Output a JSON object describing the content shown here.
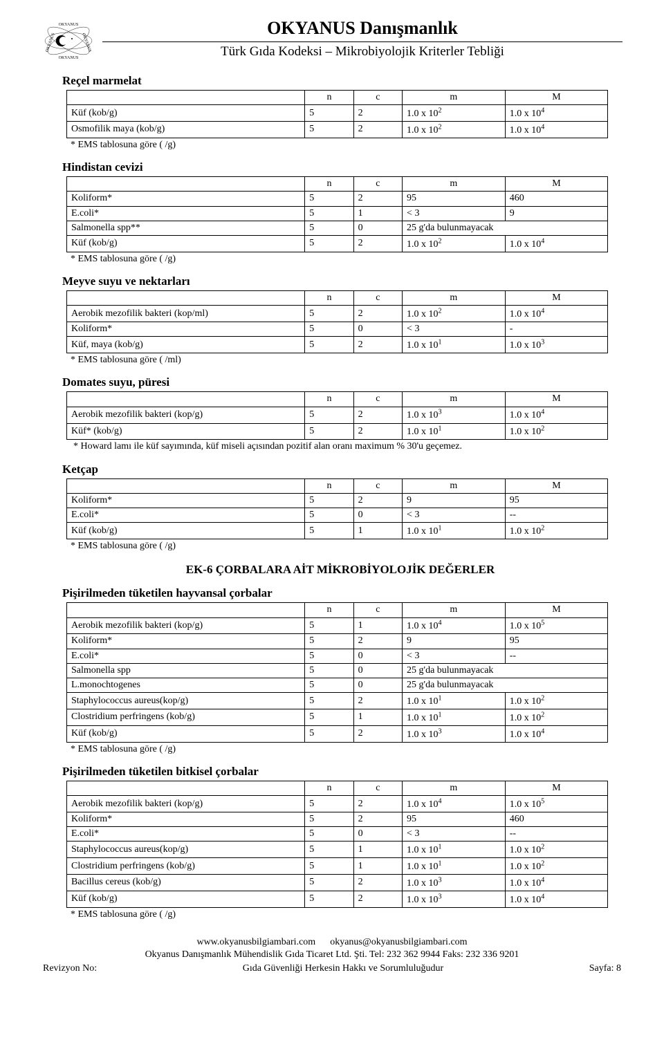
{
  "header": {
    "main_title": "OKYANUS Danışmanlık",
    "subtitle": "Türk Gıda Kodeksi – Mikrobiyolojik Kriterler Tebliği"
  },
  "sections": [
    {
      "title": "Reçel marmelat",
      "headers": [
        "",
        "n",
        "c",
        "m",
        "M"
      ],
      "rows": [
        [
          "Küf (kob/g)",
          "5",
          "2",
          "1.0 x 10^2",
          "1.0 x 10^4"
        ],
        [
          "Osmofilik maya (kob/g)",
          "5",
          "2",
          "1.0 x 10^2",
          "1.0 x 10^4"
        ]
      ],
      "notes": [
        "* EMS tablosuna göre ( /g)"
      ]
    },
    {
      "title": "Hindistan cevizi",
      "headers": [
        "",
        "n",
        "c",
        "m",
        "M"
      ],
      "rows": [
        [
          "Koliform*",
          "5",
          "2",
          "95",
          "460"
        ],
        [
          "E.coli*",
          "5",
          "1",
          "< 3",
          "9"
        ],
        [
          "Salmonella spp**",
          "5",
          "0",
          "25 g'da bulunmayacak",
          ""
        ],
        [
          "Küf (kob/g)",
          "5",
          "2",
          "1.0 x 10^2",
          "1.0 x 10^4"
        ]
      ],
      "notes": [
        "* EMS tablosuna göre ( /g)"
      ]
    },
    {
      "title": "Meyve suyu ve nektarları",
      "headers": [
        "",
        "n",
        "c",
        "m",
        "M"
      ],
      "rows": [
        [
          "Aerobik mezofilik bakteri (kop/ml)",
          "5",
          "2",
          "1.0 x 10^2",
          "1.0 x 10^4"
        ],
        [
          "Koliform*",
          "5",
          "0",
          "< 3",
          "-"
        ],
        [
          "Küf, maya (kob/g)",
          "5",
          "2",
          "1.0 x 10^1",
          "1.0 x 10^3"
        ]
      ],
      "notes": [
        "* EMS tablosuna göre ( /ml)"
      ]
    },
    {
      "title": "Domates suyu, püresi",
      "headers": [
        "",
        "n",
        "c",
        "m",
        "M"
      ],
      "rows": [
        [
          "Aerobik mezofilik bakteri (kop/g)",
          "5",
          "2",
          "1.0 x 10^3",
          "1.0 x 10^4"
        ],
        [
          "Küf* (kob/g)",
          "5",
          "2",
          "1.0 x 10^1",
          "1.0 x 10^2"
        ]
      ],
      "notes": [
        "* Howard lamı ile küf sayımında, küf miseli açısından pozitif alan oranı maximum % 30'u geçemez."
      ]
    },
    {
      "title": "Ketçap",
      "headers": [
        "",
        "n",
        "c",
        "m",
        "M"
      ],
      "rows": [
        [
          "Koliform*",
          "5",
          "2",
          "9",
          "95"
        ],
        [
          "E.coli*",
          "5",
          "0",
          "< 3",
          "--"
        ],
        [
          "Küf (kob/g)",
          "5",
          "1",
          "1.0 x 10^1",
          "1.0 x 10^2"
        ]
      ],
      "notes": [
        "* EMS tablosuna göre ( /g)"
      ]
    }
  ],
  "ek6": {
    "ek_title": "EK-6 ÇORBALARA AİT MİKROBİYOLOJİK DEĞERLER",
    "sub1": {
      "title": "Pişirilmeden tüketilen hayvansal çorbalar",
      "headers": [
        "",
        "n",
        "c",
        "m",
        "M"
      ],
      "rows": [
        [
          "Aerobik mezofilik bakteri (kop/g)",
          "5",
          "1",
          "1.0 x 10^4",
          "1.0 x 10^5"
        ],
        [
          "Koliform*",
          "5",
          "2",
          "9",
          "95"
        ],
        [
          "E.coli*",
          "5",
          "0",
          "< 3",
          "--"
        ],
        [
          "Salmonella spp",
          "5",
          "0",
          "25 g'da bulunmayacak",
          ""
        ],
        [
          "L.monochtogenes",
          "5",
          "0",
          "25 g'da bulunmayacak",
          ""
        ],
        [
          "Staphylococcus aureus(kop/g)",
          "5",
          "2",
          "1.0 x 10^1",
          "1.0 x 10^2"
        ],
        [
          "Clostridium perfringens (kob/g)",
          "5",
          "1",
          "1.0 x 10^1",
          "1.0 x 10^2"
        ],
        [
          "Küf (kob/g)",
          "5",
          "2",
          "1.0 x 10^3",
          "1.0 x 10^4"
        ]
      ],
      "notes": [
        "* EMS tablosuna göre ( /g)"
      ]
    },
    "sub2": {
      "title": "Pişirilmeden tüketilen bitkisel çorbalar",
      "headers": [
        "",
        "n",
        "c",
        "m",
        "M"
      ],
      "rows": [
        [
          "Aerobik mezofilik bakteri (kop/g)",
          "5",
          "2",
          "1.0 x 10^4",
          "1.0 x 10^5"
        ],
        [
          "Koliform*",
          "5",
          "2",
          "95",
          "460"
        ],
        [
          "E.coli*",
          "5",
          "0",
          "< 3",
          "--"
        ],
        [
          "Staphylococcus aureus(kop/g)",
          "5",
          "1",
          "1.0 x 10^1",
          "1.0 x 10^2"
        ],
        [
          "Clostridium perfringens (kob/g)",
          "5",
          "1",
          "1.0 x 10^1",
          "1.0 x 10^2"
        ],
        [
          "Bacillus cereus (kob/g)",
          "5",
          "2",
          "1.0 x 10^3",
          "1.0 x 10^4"
        ],
        [
          "Küf (kob/g)",
          "5",
          "2",
          "1.0 x 10^3",
          "1.0 x 10^4"
        ]
      ],
      "notes": [
        "*  EMS tablosuna göre ( /g)"
      ]
    }
  },
  "footer": {
    "line1_left": "www.okyanusbilgiambari.com",
    "line1_right": "okyanus@okyanusbilgiambari.com",
    "line2": "Okyanus Danışmanlık Mühendislik Gıda Ticaret Ltd. Şti. Tel: 232 362  9944 Faks: 232 336 9201",
    "rev": "Revizyon No:",
    "slogan": "Gıda Güvenliği Herkesin Hakkı ve Sorumluluğudur",
    "page": "Sayfa: 8"
  }
}
